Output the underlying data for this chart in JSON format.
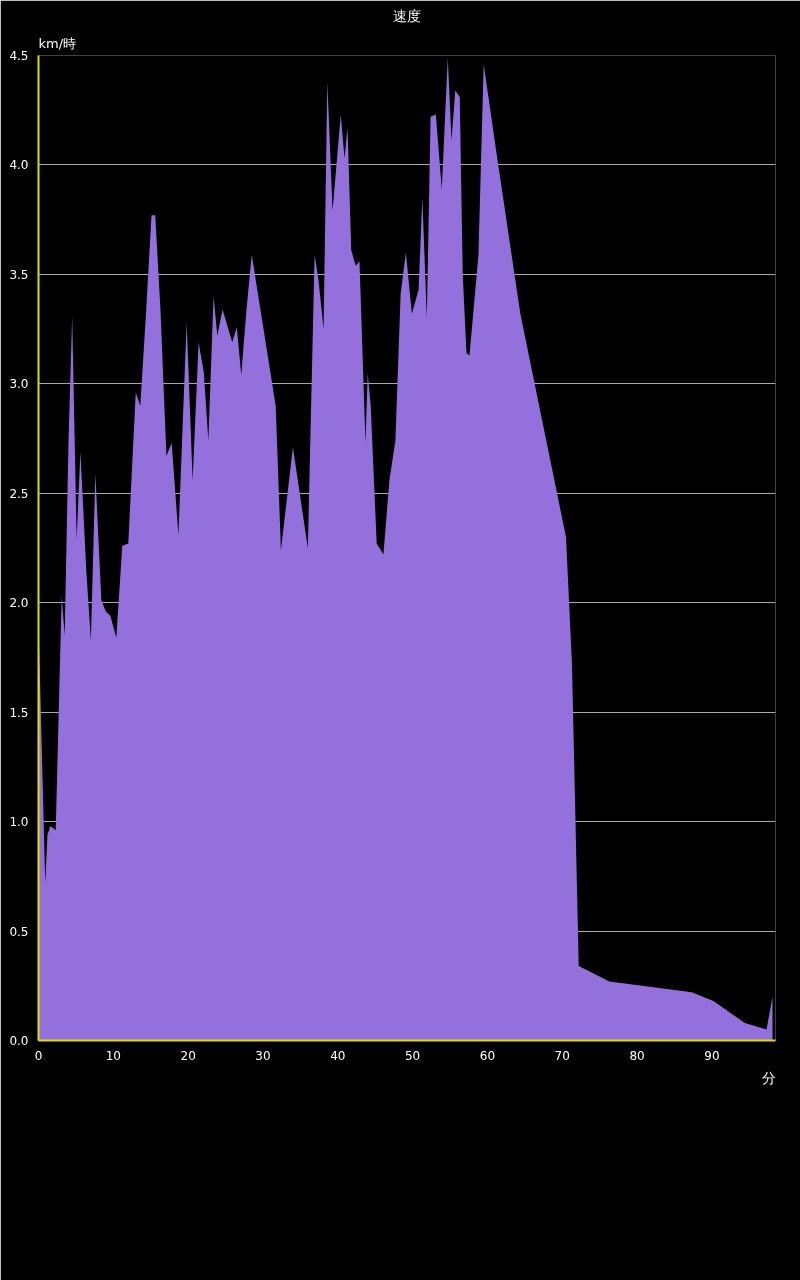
{
  "chart_data": {
    "type": "area",
    "title": "速度",
    "xlabel": "分",
    "ylabel": "km/時",
    "x": [
      0,
      0.9,
      1.2,
      1.6,
      2.3,
      3.1,
      3.5,
      4.0,
      4.5,
      5.1,
      5.6,
      6.4,
      7.0,
      7.6,
      8.4,
      9.0,
      9.6,
      10.4,
      11.2,
      12.0,
      13.0,
      13.6,
      14.4,
      15.1,
      15.6,
      16.3,
      17.1,
      17.8,
      18.7,
      19.8,
      20.6,
      21.4,
      22.1,
      22.7,
      23.4,
      23.9,
      24.6,
      25.9,
      26.5,
      27.1,
      27.8,
      28.5,
      31.7,
      32.4,
      34.0,
      36.0,
      36.9,
      37.4,
      38.1,
      38.6,
      39.3,
      40.4,
      40.9,
      41.3,
      41.8,
      42.4,
      42.9,
      43.7,
      44.0,
      44.4,
      45.2,
      46.1,
      46.9,
      47.7,
      48.4,
      49.1,
      49.9,
      50.8,
      51.3,
      51.9,
      52.4,
      53.1,
      53.9,
      54.7,
      55.2,
      55.7,
      56.3,
      56.7,
      57.2,
      57.6,
      58.8,
      59.5,
      61.4,
      64.4,
      70.5,
      71.3,
      72.2,
      76.3,
      87.3,
      90.2,
      94.4,
      97.3,
      98.1
    ],
    "series": [
      {
        "color": "#9370db",
        "values": [
          1.92,
          0.72,
          0.94,
          0.98,
          0.96,
          2.03,
          1.85,
          2.72,
          3.31,
          2.29,
          2.69,
          2.14,
          1.83,
          2.59,
          2.01,
          1.96,
          1.94,
          1.84,
          2.26,
          2.27,
          2.96,
          2.9,
          3.34,
          3.77,
          3.77,
          3.34,
          2.67,
          2.73,
          2.31,
          3.28,
          2.56,
          3.19,
          3.05,
          2.74,
          3.4,
          3.22,
          3.34,
          3.19,
          3.26,
          3.04,
          3.34,
          3.59,
          2.9,
          2.24,
          2.71,
          2.25,
          3.59,
          3.48,
          3.25,
          4.38,
          3.79,
          4.23,
          4.03,
          4.17,
          3.61,
          3.54,
          3.56,
          2.73,
          3.05,
          2.9,
          2.27,
          2.22,
          2.56,
          2.74,
          3.41,
          3.6,
          3.32,
          3.43,
          3.85,
          3.3,
          4.22,
          4.23,
          3.89,
          4.49,
          4.11,
          4.34,
          4.31,
          3.5,
          3.14,
          3.13,
          3.59,
          4.46,
          4.01,
          3.32,
          2.3,
          1.72,
          0.34,
          0.27,
          0.22,
          0.18,
          0.08,
          0.05,
          0.2
        ]
      }
    ],
    "xlim": [
      0,
      98.5
    ],
    "ylim": [
      0,
      4.5
    ],
    "xticks": [
      0,
      10,
      20,
      30,
      40,
      50,
      60,
      70,
      80,
      90
    ],
    "yticks": [
      {
        "value": 0,
        "label": "0.0"
      },
      {
        "value": 0.5,
        "label": "0.5"
      },
      {
        "value": 1,
        "label": "1.0"
      },
      {
        "value": 1.5,
        "label": "1.5"
      },
      {
        "value": 2,
        "label": "2.0"
      },
      {
        "value": 2.5,
        "label": "2.5"
      },
      {
        "value": 3,
        "label": "3.0"
      },
      {
        "value": 3.5,
        "label": "3.5"
      },
      {
        "value": 4,
        "label": "4.0"
      },
      {
        "value": 4.5,
        "label": "4.5"
      }
    ],
    "grid": "y"
  }
}
